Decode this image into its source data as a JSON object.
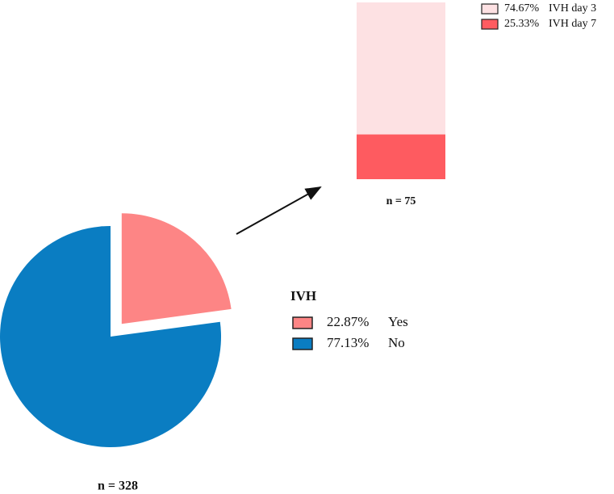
{
  "chart_data": [
    {
      "type": "pie",
      "legend_title": "IVH",
      "categories": [
        "Yes",
        "No"
      ],
      "values": [
        22.87,
        77.13
      ],
      "value_labels": [
        "22.87%",
        "77.13%"
      ],
      "colors": [
        "#fd8585",
        "#0a7dc2"
      ],
      "explode": [
        true,
        false
      ],
      "annotation": "n = 328"
    },
    {
      "type": "bar",
      "stacked": true,
      "categories": [
        null
      ],
      "series": [
        {
          "name": "IVH day 3",
          "color": "#fde1e3",
          "values": [
            74.67
          ],
          "value_labels": [
            "74.67%"
          ]
        },
        {
          "name": "IVH day 7",
          "color": "#fe5b60",
          "values": [
            25.33
          ],
          "value_labels": [
            "25.33%"
          ]
        }
      ],
      "annotation": "n = 75"
    }
  ]
}
